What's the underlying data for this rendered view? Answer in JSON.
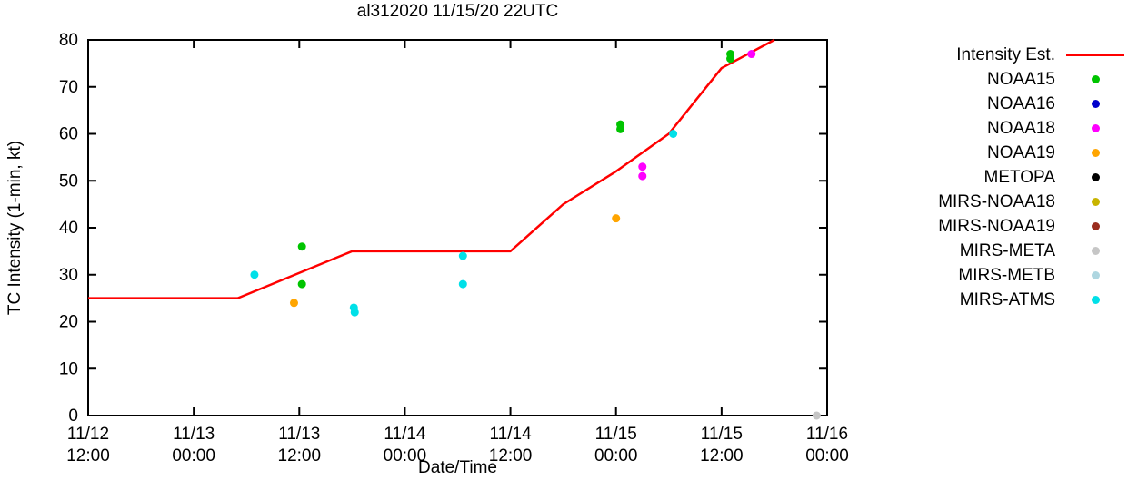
{
  "page": {
    "background": "#ffffff"
  },
  "chart_data": {
    "type": "line",
    "title": "al312020 11/15/20 22UTC",
    "xlabel": "Date/Time",
    "ylabel": "TC Intensity (1-min, kt)",
    "x_unit": "hours since 11/12 12:00",
    "xlim": [
      0,
      84
    ],
    "ylim": [
      0,
      80
    ],
    "y_tick_step": 10,
    "grid": "off",
    "x_ticks": [
      {
        "hours": 0,
        "date": "11/12",
        "time": "12:00"
      },
      {
        "hours": 12,
        "date": "11/13",
        "time": "00:00"
      },
      {
        "hours": 24,
        "date": "11/13",
        "time": "12:00"
      },
      {
        "hours": 36,
        "date": "11/14",
        "time": "00:00"
      },
      {
        "hours": 48,
        "date": "11/14",
        "time": "12:00"
      },
      {
        "hours": 60,
        "date": "11/15",
        "time": "00:00"
      },
      {
        "hours": 72,
        "date": "11/15",
        "time": "12:00"
      },
      {
        "hours": 84,
        "date": "11/16",
        "time": "00:00"
      }
    ],
    "intensity_line": {
      "name": "Intensity Est.",
      "color": "#ff0000",
      "points": [
        [
          0,
          25
        ],
        [
          17,
          25
        ],
        [
          30,
          35
        ],
        [
          48,
          35
        ],
        [
          54,
          45
        ],
        [
          60,
          52
        ],
        [
          66,
          60
        ],
        [
          72,
          74
        ],
        [
          78,
          80
        ]
      ]
    },
    "series": [
      {
        "name": "NOAA15",
        "color": "#00c400",
        "points": [
          [
            24.3,
            36
          ],
          [
            24.3,
            28
          ],
          [
            60.5,
            62
          ],
          [
            60.5,
            61
          ],
          [
            73,
            77
          ],
          [
            73,
            76
          ]
        ]
      },
      {
        "name": "NOAA16",
        "color": "#0000cc",
        "points": []
      },
      {
        "name": "NOAA18",
        "color": "#ff00ff",
        "points": [
          [
            63,
            53
          ],
          [
            63,
            51
          ],
          [
            75.4,
            77
          ]
        ]
      },
      {
        "name": "NOAA19",
        "color": "#ffa500",
        "points": [
          [
            23.4,
            24
          ],
          [
            60,
            42
          ]
        ]
      },
      {
        "name": "METOPA",
        "color": "#000000",
        "points": []
      },
      {
        "name": "MIRS-NOAA18",
        "color": "#c8b400",
        "points": []
      },
      {
        "name": "MIRS-NOAA19",
        "color": "#9b2d1f",
        "points": []
      },
      {
        "name": "MIRS-META",
        "color": "#c6c6c6",
        "points": [
          [
            82.8,
            0
          ]
        ]
      },
      {
        "name": "MIRS-METB",
        "color": "#aed6e0",
        "points": []
      },
      {
        "name": "MIRS-ATMS",
        "color": "#00e0e8",
        "points": [
          [
            18.9,
            30
          ],
          [
            30.2,
            23
          ],
          [
            30.3,
            22
          ],
          [
            42.6,
            34
          ],
          [
            42.6,
            28
          ],
          [
            66.5,
            60
          ]
        ]
      }
    ],
    "legend": {
      "position": "right"
    }
  }
}
